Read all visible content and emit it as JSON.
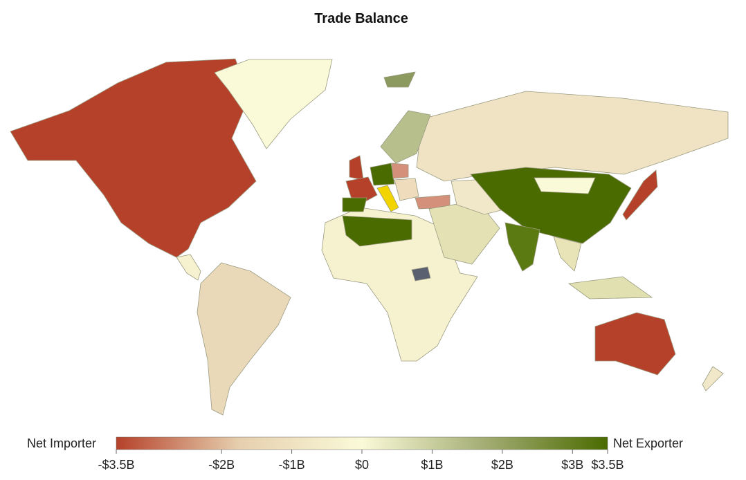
{
  "chart_data": {
    "type": "choropleth",
    "title": "Trade Balance",
    "legend_left": "Net Importer",
    "legend_right": "Net Exporter",
    "zlim": [
      -3.5,
      3.5
    ],
    "colors": [
      "#b5412a",
      "#e6cfae",
      "#fafad8",
      "#a4ad74",
      "#4a6b00"
    ],
    "zticks": [
      {
        "value": -3.5,
        "label": "-$3.5B"
      },
      {
        "value": -2,
        "label": "-$2B"
      },
      {
        "value": -1,
        "label": "-$1B"
      },
      {
        "value": 0,
        "label": "$0"
      },
      {
        "value": 1,
        "label": "$1B"
      },
      {
        "value": 2,
        "label": "$2B"
      },
      {
        "value": 3,
        "label": "$3B"
      },
      {
        "value": 3.5,
        "label": "$3.5B"
      }
    ]
  }
}
